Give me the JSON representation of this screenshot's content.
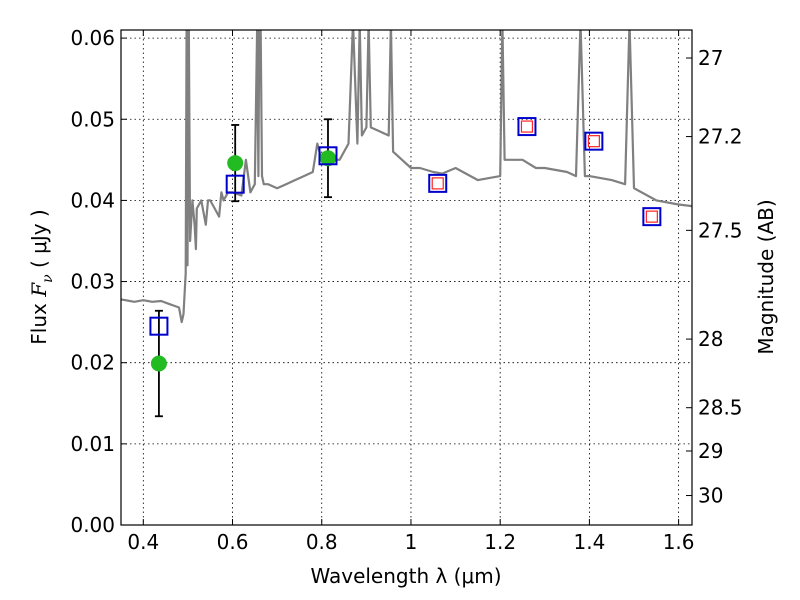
{
  "chart_data": {
    "type": "scatter",
    "xlabel": "Wavelength  λ (μm)",
    "ylabel_prefix": "Flux  ",
    "ylabel_symbol": "F",
    "ylabel_subscript": "ν",
    "ylabel_units": "  ( μJy )",
    "y2label": "Magnitude (AB)",
    "xlim": [
      0.35,
      1.63
    ],
    "ylim": [
      0.0,
      0.061
    ],
    "grid": true,
    "x_ticks": [
      {
        "value": 0.4,
        "label": "0.4"
      },
      {
        "value": 0.6,
        "label": "0.6"
      },
      {
        "value": 0.8,
        "label": "0.8"
      },
      {
        "value": 1.0,
        "label": "1"
      },
      {
        "value": 1.2,
        "label": "1.2"
      },
      {
        "value": 1.4,
        "label": "1.4"
      },
      {
        "value": 1.6,
        "label": "1.6"
      }
    ],
    "y_ticks": [
      {
        "value": 0.0,
        "label": "0.00"
      },
      {
        "value": 0.01,
        "label": "0.01"
      },
      {
        "value": 0.02,
        "label": "0.02"
      },
      {
        "value": 0.03,
        "label": "0.03"
      },
      {
        "value": 0.04,
        "label": "0.04"
      },
      {
        "value": 0.05,
        "label": "0.05"
      },
      {
        "value": 0.06,
        "label": "0.06"
      }
    ],
    "y2_ticks": [
      {
        "value": 27.0,
        "label": "27"
      },
      {
        "value": 27.2,
        "label": "27.2"
      },
      {
        "value": 27.5,
        "label": "27.5"
      },
      {
        "value": 28.0,
        "label": "28"
      },
      {
        "value": 28.5,
        "label": "28.5"
      },
      {
        "value": 29.0,
        "label": "29"
      },
      {
        "value": 30.0,
        "label": "30"
      }
    ],
    "colors": {
      "model": "#808080",
      "observed": "#22bb22",
      "model_band": "#0000cc",
      "predicted": "#ff2222",
      "errorbar": "#000000"
    },
    "model_spectrum": {
      "x": [
        0.35,
        0.38,
        0.4,
        0.42,
        0.44,
        0.46,
        0.47,
        0.48,
        0.486,
        0.49,
        0.495,
        0.497,
        0.499,
        0.5,
        0.502,
        0.505,
        0.51,
        0.515,
        0.518,
        0.52,
        0.53,
        0.54,
        0.545,
        0.55,
        0.56,
        0.57,
        0.575,
        0.58,
        0.59,
        0.6,
        0.62,
        0.63,
        0.64,
        0.65,
        0.655,
        0.658,
        0.66,
        0.663,
        0.666,
        0.67,
        0.68,
        0.7,
        0.72,
        0.74,
        0.76,
        0.78,
        0.79,
        0.8,
        0.82,
        0.84,
        0.86,
        0.87,
        0.88,
        0.885,
        0.89,
        0.9,
        0.905,
        0.91,
        0.93,
        0.95,
        0.955,
        0.96,
        0.98,
        1.0,
        1.02,
        1.05,
        1.07,
        1.1,
        1.15,
        1.2,
        1.205,
        1.21,
        1.25,
        1.28,
        1.3,
        1.35,
        1.37,
        1.38,
        1.39,
        1.4,
        1.45,
        1.48,
        1.49,
        1.5,
        1.55,
        1.6,
        1.63
      ],
      "y": [
        0.0278,
        0.0275,
        0.0277,
        0.0275,
        0.0276,
        0.0272,
        0.027,
        0.0268,
        0.025,
        0.026,
        0.031,
        0.062,
        0.032,
        0.042,
        0.062,
        0.035,
        0.04,
        0.037,
        0.034,
        0.039,
        0.04,
        0.037,
        0.04,
        0.04,
        0.039,
        0.038,
        0.041,
        0.04,
        0.041,
        0.041,
        0.0406,
        0.045,
        0.041,
        0.042,
        0.061,
        0.043,
        0.062,
        0.062,
        0.043,
        0.042,
        0.042,
        0.0415,
        0.042,
        0.0425,
        0.043,
        0.0435,
        0.047,
        0.045,
        0.045,
        0.045,
        0.047,
        0.062,
        0.047,
        0.062,
        0.048,
        0.049,
        0.062,
        0.049,
        0.0485,
        0.048,
        0.062,
        0.046,
        0.045,
        0.044,
        0.044,
        0.0435,
        0.0433,
        0.044,
        0.0425,
        0.043,
        0.062,
        0.045,
        0.045,
        0.044,
        0.044,
        0.0435,
        0.043,
        0.062,
        0.043,
        0.043,
        0.0425,
        0.042,
        0.062,
        0.0415,
        0.04,
        0.0395,
        0.0393
      ]
    },
    "series": [
      {
        "name": "",
        "marker": "circle",
        "x": [
          0.435,
          0.606,
          0.814
        ],
        "y": [
          0.0199,
          0.0446,
          0.0452
        ],
        "yerr": [
          0.0065,
          0.0047,
          0.0048
        ]
      },
      {
        "name": "",
        "marker": "square-blue",
        "x": [
          0.435,
          0.606,
          0.814,
          1.06,
          1.26,
          1.41,
          1.54
        ],
        "y": [
          0.0245,
          0.042,
          0.0455,
          0.0421,
          0.0491,
          0.0473,
          0.038
        ]
      },
      {
        "name": "",
        "marker": "square-red",
        "x": [
          1.06,
          1.26,
          1.41,
          1.54
        ],
        "y": [
          0.0421,
          0.0491,
          0.0473,
          0.038
        ]
      }
    ]
  }
}
